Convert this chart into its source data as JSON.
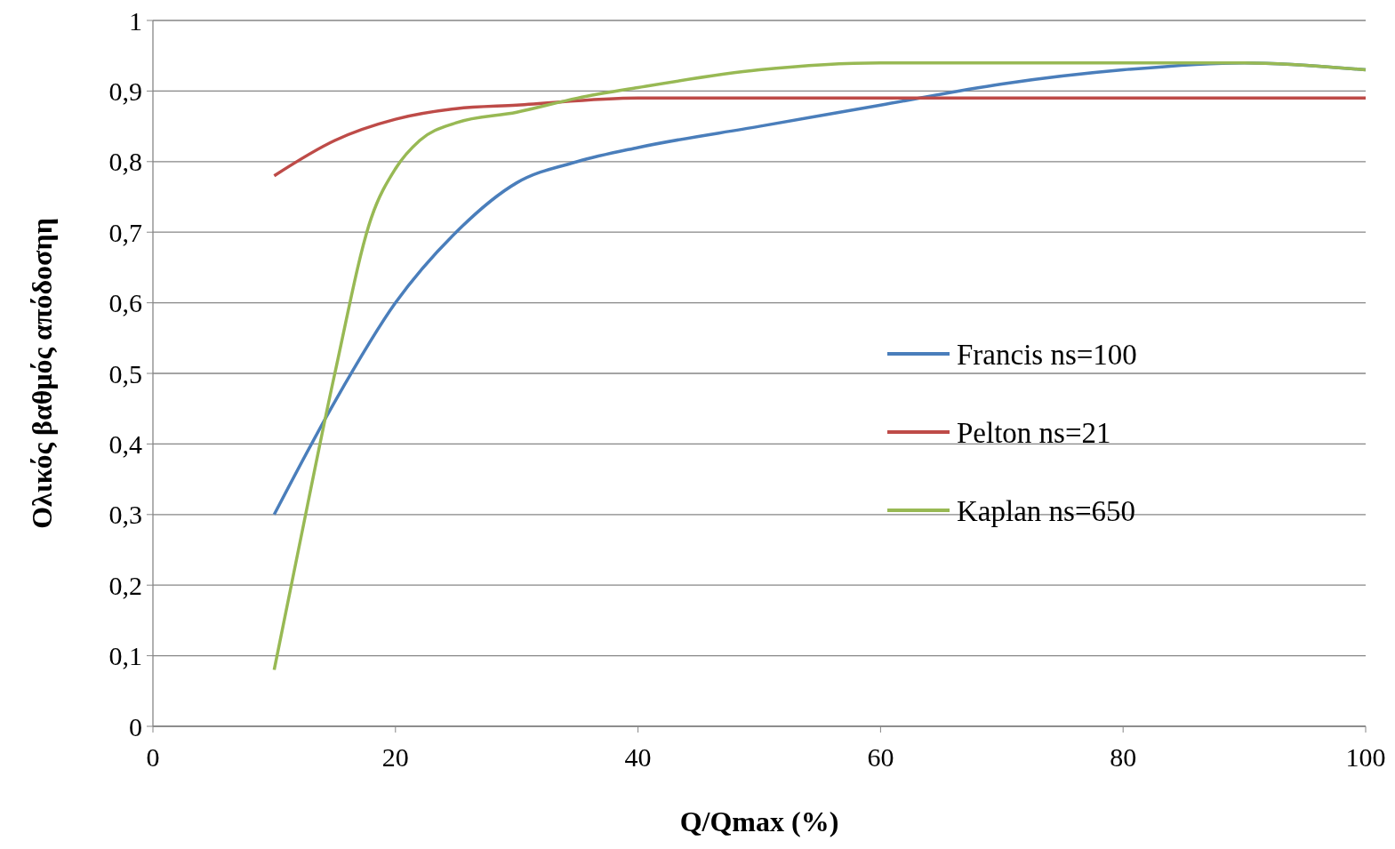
{
  "chart_data": {
    "type": "line",
    "xlabel": "Q/Qmax (%)",
    "ylabel": "Ολικός βαθμός απόδοσηη",
    "xlim": [
      0,
      100
    ],
    "xticks": [
      0,
      20,
      40,
      60,
      80,
      100
    ],
    "ylim": [
      0,
      1
    ],
    "yticks": [
      {
        "value": 0,
        "label": "0"
      },
      {
        "value": 0.1,
        "label": "0,1"
      },
      {
        "value": 0.2,
        "label": "0,2"
      },
      {
        "value": 0.3,
        "label": "0,3"
      },
      {
        "value": 0.4,
        "label": "0,4"
      },
      {
        "value": 0.5,
        "label": "0,5"
      },
      {
        "value": 0.6,
        "label": "0,6"
      },
      {
        "value": 0.7,
        "label": "0,7"
      },
      {
        "value": 0.8,
        "label": "0,8"
      },
      {
        "value": 0.9,
        "label": "0,9"
      },
      {
        "value": 1,
        "label": "1"
      }
    ],
    "grid": "y",
    "legend": "right",
    "marker": "none",
    "line_style": "solid",
    "series": [
      {
        "name": "Francis ns=100",
        "color": "#4a7ebb",
        "x": [
          10,
          15,
          20,
          25,
          30,
          35,
          40,
          50,
          60,
          70,
          80,
          90,
          100
        ],
        "values": [
          0.3,
          0.46,
          0.6,
          0.7,
          0.77,
          0.8,
          0.82,
          0.85,
          0.88,
          0.91,
          0.93,
          0.94,
          0.93
        ]
      },
      {
        "name": "Pelton ns=21",
        "color": "#be4b48",
        "x": [
          10,
          15,
          20,
          25,
          30,
          40,
          50,
          100
        ],
        "values": [
          0.78,
          0.83,
          0.86,
          0.875,
          0.88,
          0.89,
          0.89,
          0.89
        ]
      },
      {
        "name": "Kaplan ns=650",
        "color": "#98b954",
        "x": [
          10,
          12,
          15,
          18,
          20,
          22,
          25,
          30,
          35,
          40,
          50,
          60,
          70,
          80,
          90,
          100
        ],
        "values": [
          0.08,
          0.25,
          0.5,
          0.72,
          0.79,
          0.83,
          0.855,
          0.87,
          0.89,
          0.905,
          0.93,
          0.94,
          0.94,
          0.94,
          0.94,
          0.93
        ]
      }
    ]
  }
}
